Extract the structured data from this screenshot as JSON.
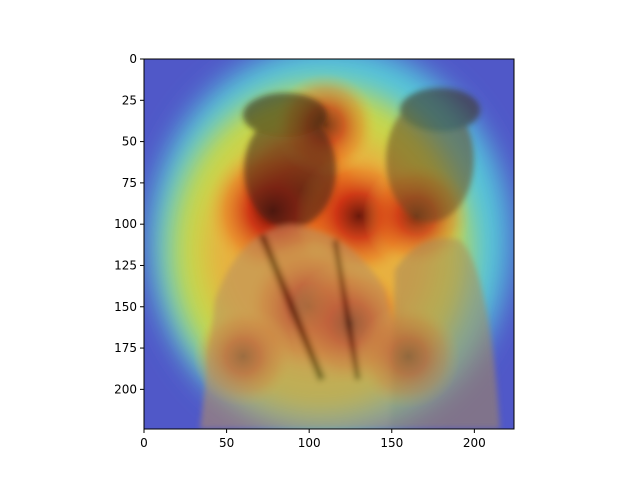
{
  "chart_data": {
    "type": "heatmap",
    "title": "",
    "xlabel": "",
    "ylabel": "",
    "image_width": 224,
    "image_height": 224,
    "xlim": [
      0,
      224
    ],
    "ylim": [
      224,
      0
    ],
    "x_ticks": [
      0,
      50,
      100,
      150,
      200
    ],
    "x_tick_labels": [
      "0",
      "50",
      "100",
      "150",
      "200"
    ],
    "y_ticks": [
      0,
      25,
      50,
      75,
      100,
      125,
      150,
      175,
      200
    ],
    "y_tick_labels": [
      "0",
      "25",
      "50",
      "75",
      "100",
      "125",
      "150",
      "175",
      "200"
    ],
    "grid": false,
    "colormap": "jet",
    "overlay": "attention heatmap over a sepia photograph of two laughing men",
    "hotspots": [
      {
        "x": 95,
        "y": 80,
        "intensity": 1.0
      },
      {
        "x": 78,
        "y": 92,
        "intensity": 0.95
      },
      {
        "x": 130,
        "y": 95,
        "intensity": 0.85
      },
      {
        "x": 100,
        "y": 150,
        "intensity": 0.9
      },
      {
        "x": 125,
        "y": 160,
        "intensity": 0.8
      },
      {
        "x": 165,
        "y": 95,
        "intensity": 0.6
      },
      {
        "x": 160,
        "y": 180,
        "intensity": 0.55
      },
      {
        "x": 60,
        "y": 180,
        "intensity": 0.5
      },
      {
        "x": 110,
        "y": 40,
        "intensity": 0.55
      }
    ],
    "colors": {
      "cold": "#3a3acf",
      "cool": "#3fc8e8",
      "warm": "#e8e84a",
      "hot": "#e02a14",
      "hottest": "#7a0808"
    }
  }
}
